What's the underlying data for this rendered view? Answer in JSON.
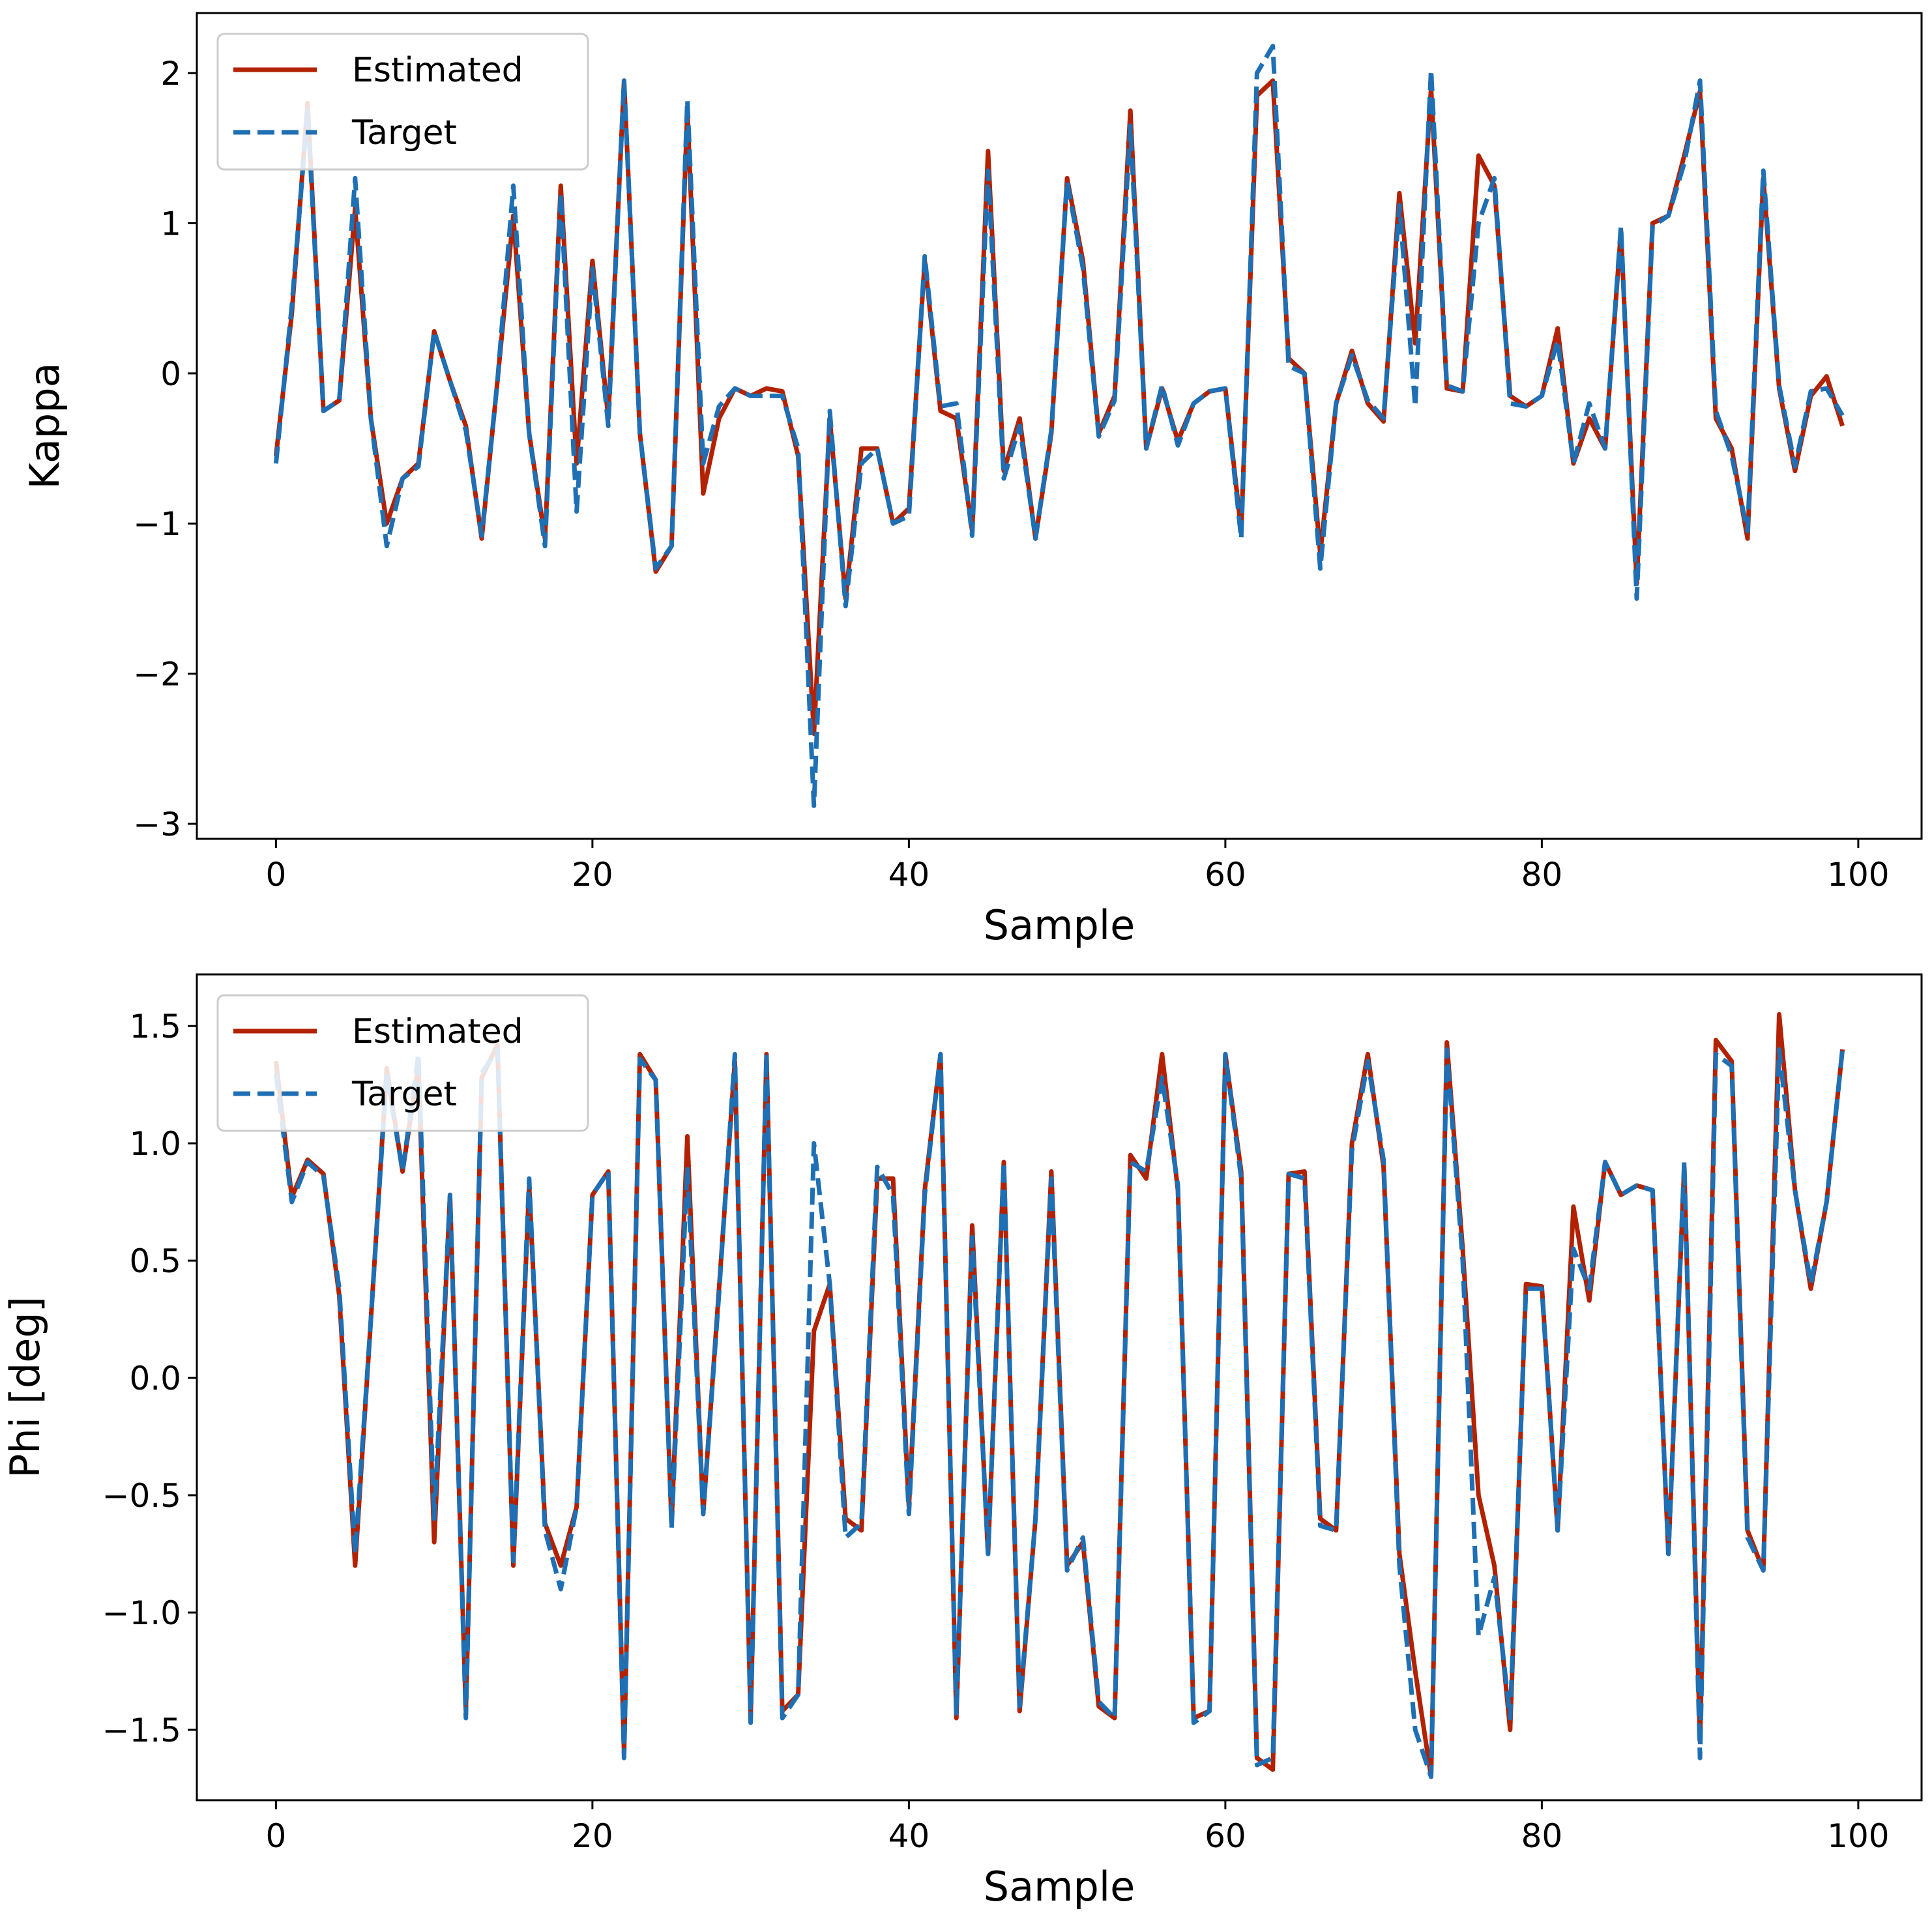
{
  "chart_data": [
    {
      "type": "line",
      "title": "",
      "xlabel": "Sample",
      "ylabel": "Kappa",
      "xlim": [
        -5,
        104
      ],
      "ylim": [
        -3.1,
        2.4
      ],
      "xticks": [
        0,
        20,
        40,
        60,
        80,
        100
      ],
      "xtick_labels": [
        "0",
        "20",
        "40",
        "60",
        "80",
        "100"
      ],
      "yticks": [
        2,
        1,
        0,
        -1,
        -2,
        -3
      ],
      "ytick_labels": [
        "2",
        "1",
        "0",
        "−1",
        "−2",
        "−3"
      ],
      "grid": false,
      "legend": {
        "position": "top-left",
        "entries": [
          "Estimated",
          "Target"
        ]
      },
      "series": [
        {
          "name": "Estimated",
          "color": "#b22200",
          "style": "solid",
          "values": [
            -0.55,
            0.4,
            1.8,
            -0.25,
            -0.18,
            1.1,
            -0.3,
            -1.0,
            -0.7,
            -0.6,
            0.28,
            -0.05,
            -0.35,
            -1.1,
            -0.05,
            1.05,
            -0.4,
            -1.1,
            1.25,
            -0.6,
            0.75,
            -0.3,
            1.95,
            -0.4,
            -1.32,
            -1.15,
            1.75,
            -0.8,
            -0.3,
            -0.1,
            -0.15,
            -0.1,
            -0.12,
            -0.55,
            -2.4,
            -0.3,
            -1.5,
            -0.5,
            -0.5,
            -1.0,
            -0.9,
            0.75,
            -0.25,
            -0.3,
            -1.05,
            1.48,
            -0.65,
            -0.3,
            -1.1,
            -0.4,
            1.3,
            0.75,
            -0.4,
            -0.15,
            1.75,
            -0.5,
            -0.1,
            -0.45,
            -0.2,
            -0.12,
            -0.1,
            -1.05,
            1.85,
            1.95,
            0.1,
            0.0,
            -1.2,
            -0.2,
            0.15,
            -0.2,
            -0.32,
            1.2,
            0.2,
            1.9,
            -0.1,
            -0.12,
            1.45,
            1.25,
            -0.15,
            -0.22,
            -0.15,
            0.3,
            -0.6,
            -0.3,
            -0.5,
            0.95,
            -1.4,
            1.0,
            1.05,
            1.45,
            1.88,
            -0.3,
            -0.5,
            -1.1,
            1.3,
            -0.1,
            -0.65,
            -0.15,
            -0.02,
            -0.35
          ]
        },
        {
          "name": "Target",
          "color": "#1f6fb4",
          "style": "dashed",
          "values": [
            -0.6,
            0.45,
            1.75,
            -0.25,
            -0.18,
            1.3,
            -0.3,
            -1.15,
            -0.7,
            -0.62,
            0.28,
            -0.05,
            -0.38,
            -1.08,
            -0.05,
            1.25,
            -0.4,
            -1.15,
            1.2,
            -0.92,
            0.7,
            -0.35,
            1.95,
            -0.4,
            -1.3,
            -1.15,
            1.82,
            -0.6,
            -0.22,
            -0.1,
            -0.15,
            -0.15,
            -0.15,
            -0.5,
            -2.88,
            -0.25,
            -1.55,
            -0.6,
            -0.5,
            -1.0,
            -0.95,
            0.78,
            -0.22,
            -0.2,
            -1.08,
            1.35,
            -0.7,
            -0.35,
            -1.1,
            -0.38,
            1.28,
            0.7,
            -0.42,
            -0.18,
            1.65,
            -0.5,
            -0.08,
            -0.48,
            -0.2,
            -0.12,
            -0.1,
            -1.1,
            2.0,
            2.18,
            0.05,
            0.0,
            -1.3,
            -0.2,
            0.12,
            -0.18,
            -0.3,
            1.12,
            -0.22,
            2.02,
            -0.08,
            -0.12,
            1.0,
            1.3,
            -0.2,
            -0.22,
            -0.15,
            0.22,
            -0.6,
            -0.2,
            -0.5,
            0.98,
            -1.5,
            0.98,
            1.05,
            1.4,
            1.95,
            -0.25,
            -0.55,
            -1.05,
            1.35,
            -0.08,
            -0.62,
            -0.12,
            -0.1,
            -0.28
          ]
        }
      ]
    },
    {
      "type": "line",
      "title": "",
      "xlabel": "Sample",
      "ylabel": "Phi [deg]",
      "xlim": [
        -5,
        104
      ],
      "ylim": [
        -1.8,
        1.72
      ],
      "xticks": [
        0,
        20,
        40,
        60,
        80,
        100
      ],
      "xtick_labels": [
        "0",
        "20",
        "40",
        "60",
        "80",
        "100"
      ],
      "yticks": [
        1.5,
        1.0,
        0.5,
        0.0,
        -0.5,
        -1.0,
        -1.5
      ],
      "ytick_labels": [
        "1.5",
        "1.0",
        "0.5",
        "0.0",
        "−0.5",
        "−1.0",
        "−1.5"
      ],
      "grid": false,
      "legend": {
        "position": "top-left",
        "entries": [
          "Estimated",
          "Target"
        ]
      },
      "series": [
        {
          "name": "Estimated",
          "color": "#b22200",
          "style": "solid",
          "values": [
            1.35,
            0.77,
            0.93,
            0.87,
            0.35,
            -0.8,
            0.25,
            1.32,
            0.88,
            1.33,
            -0.7,
            0.78,
            -1.42,
            1.28,
            1.42,
            -0.8,
            0.82,
            -0.62,
            -0.8,
            -0.55,
            0.78,
            0.88,
            -1.6,
            1.38,
            1.27,
            -0.62,
            1.03,
            -0.58,
            0.38,
            1.35,
            -1.45,
            1.38,
            -1.42,
            -1.35,
            0.2,
            0.4,
            -0.6,
            -0.65,
            0.85,
            0.85,
            -0.55,
            0.8,
            1.38,
            -1.45,
            0.65,
            -0.75,
            0.92,
            -1.42,
            -0.6,
            0.88,
            -0.8,
            -0.7,
            -1.4,
            -1.45,
            0.95,
            0.85,
            1.38,
            0.8,
            -1.45,
            -1.42,
            1.38,
            0.88,
            -1.62,
            -1.67,
            0.87,
            0.88,
            -0.6,
            -0.65,
            1.0,
            1.38,
            0.9,
            -0.75,
            -1.25,
            -1.7,
            1.43,
            0.55,
            -0.5,
            -0.8,
            -1.5,
            0.4,
            0.39,
            -0.65,
            0.73,
            0.33,
            0.92,
            0.78,
            0.82,
            0.8,
            -0.75,
            0.9,
            -1.55,
            1.44,
            1.35,
            -0.65,
            -0.82,
            1.55,
            0.8,
            0.38,
            0.75,
            1.4
          ]
        },
        {
          "name": "Target",
          "color": "#1f6fb4",
          "style": "dashed",
          "values": [
            1.3,
            0.75,
            0.92,
            0.86,
            0.38,
            -0.75,
            0.25,
            1.3,
            0.88,
            1.38,
            -0.6,
            0.78,
            -1.45,
            1.3,
            1.4,
            -0.78,
            0.85,
            -0.65,
            -0.9,
            -0.55,
            0.78,
            0.88,
            -1.62,
            1.36,
            1.27,
            -0.64,
            0.9,
            -0.58,
            0.36,
            1.38,
            -1.47,
            1.38,
            -1.45,
            -1.35,
            1.0,
            0.4,
            -0.68,
            -0.62,
            0.9,
            0.78,
            -0.58,
            0.78,
            1.38,
            -1.43,
            0.6,
            -0.75,
            0.92,
            -1.4,
            -0.6,
            0.85,
            -0.82,
            -0.68,
            -1.38,
            -1.45,
            0.92,
            0.88,
            1.28,
            0.82,
            -1.47,
            -1.42,
            1.38,
            0.85,
            -1.65,
            -1.62,
            0.87,
            0.85,
            -0.63,
            -0.65,
            0.97,
            1.35,
            0.93,
            -0.8,
            -1.5,
            -1.7,
            1.4,
            0.5,
            -1.1,
            -0.85,
            -1.45,
            0.38,
            0.38,
            -0.65,
            0.55,
            0.38,
            0.92,
            0.78,
            0.82,
            0.8,
            -0.75,
            0.92,
            -1.62,
            1.38,
            1.33,
            -0.68,
            -0.82,
            1.4,
            0.8,
            0.4,
            0.75,
            1.4
          ]
        }
      ]
    }
  ]
}
